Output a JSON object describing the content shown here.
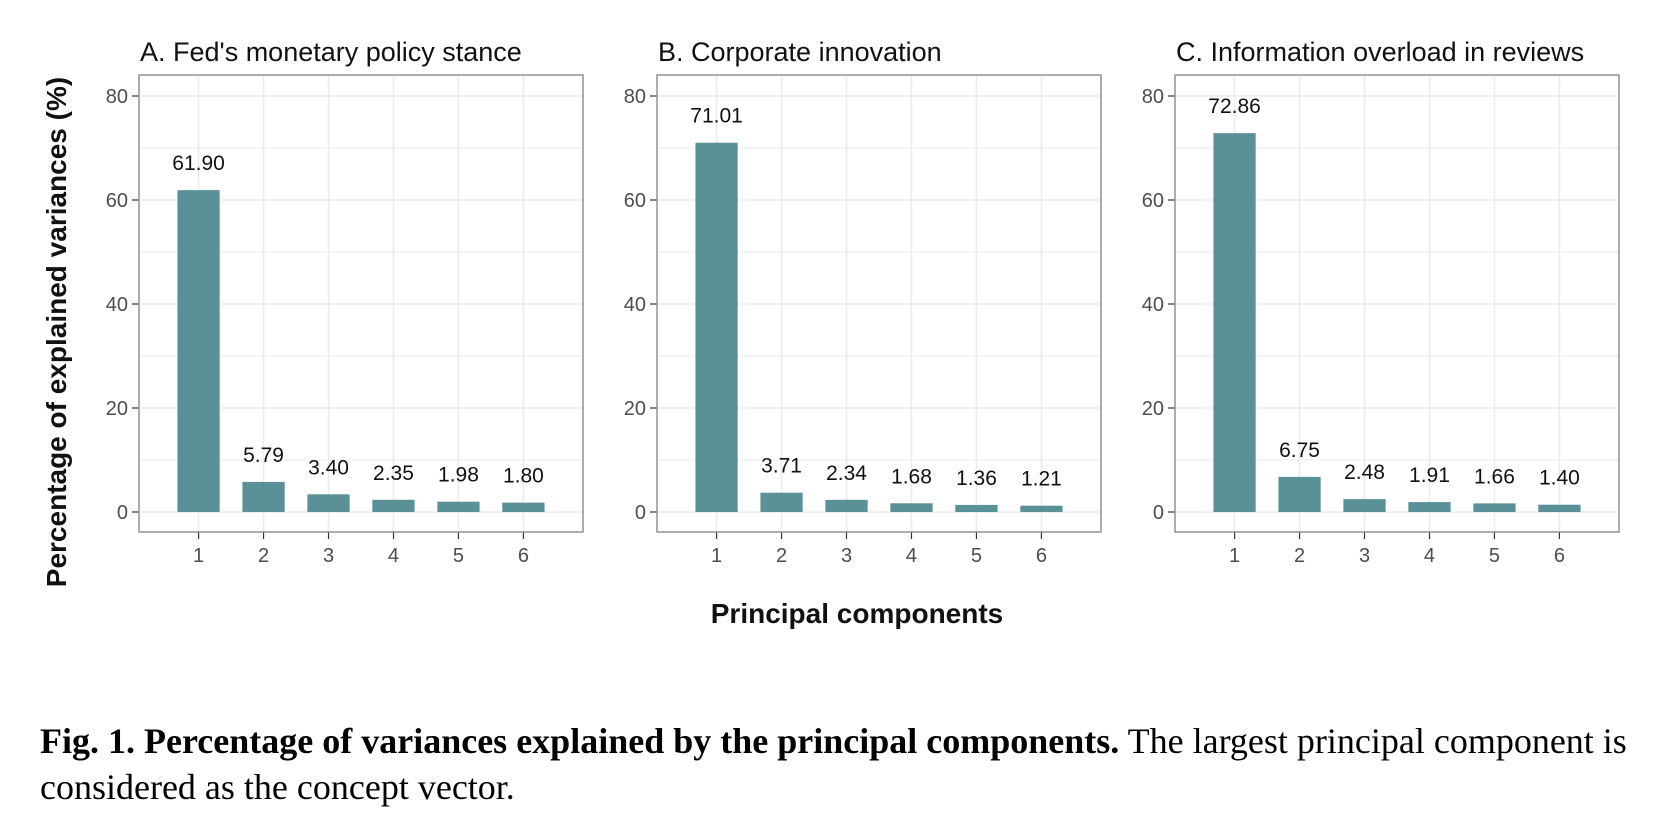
{
  "chart_data": [
    {
      "type": "bar",
      "title": "A. Fed's monetary policy stance",
      "categories": [
        "1",
        "2",
        "3",
        "4",
        "5",
        "6"
      ],
      "values": [
        61.9,
        5.79,
        3.4,
        2.35,
        1.98,
        1.8
      ],
      "value_labels": [
        "61.90",
        "5.79",
        "3.40",
        "2.35",
        "1.98",
        "1.80"
      ],
      "ylim": [
        0,
        80
      ],
      "yticks": [
        0,
        20,
        40,
        60,
        80
      ],
      "grid": true
    },
    {
      "type": "bar",
      "title": "B. Corporate innovation",
      "categories": [
        "1",
        "2",
        "3",
        "4",
        "5",
        "6"
      ],
      "values": [
        71.01,
        3.71,
        2.34,
        1.68,
        1.36,
        1.21
      ],
      "value_labels": [
        "71.01",
        "3.71",
        "2.34",
        "1.68",
        "1.36",
        "1.21"
      ],
      "ylim": [
        0,
        80
      ],
      "yticks": [
        0,
        20,
        40,
        60,
        80
      ],
      "grid": true
    },
    {
      "type": "bar",
      "title": "C. Information overload in reviews",
      "categories": [
        "1",
        "2",
        "3",
        "4",
        "5",
        "6"
      ],
      "values": [
        72.86,
        6.75,
        2.48,
        1.91,
        1.66,
        1.4
      ],
      "value_labels": [
        "72.86",
        "6.75",
        "2.48",
        "1.91",
        "1.66",
        "1.40"
      ],
      "ylim": [
        0,
        80
      ],
      "yticks": [
        0,
        20,
        40,
        60,
        80
      ],
      "grid": true
    }
  ],
  "ylabel": "Percentage of explained variances (%)",
  "xlabel": "Principal components",
  "colors": {
    "bar": "#5a9196",
    "grid": "#ebebeb",
    "panel_border": "#8c8c8c"
  },
  "caption": {
    "bold": "Fig. 1. Percentage of variances explained by the principal components.",
    "text": " The largest principal component is considered as the concept vector."
  }
}
